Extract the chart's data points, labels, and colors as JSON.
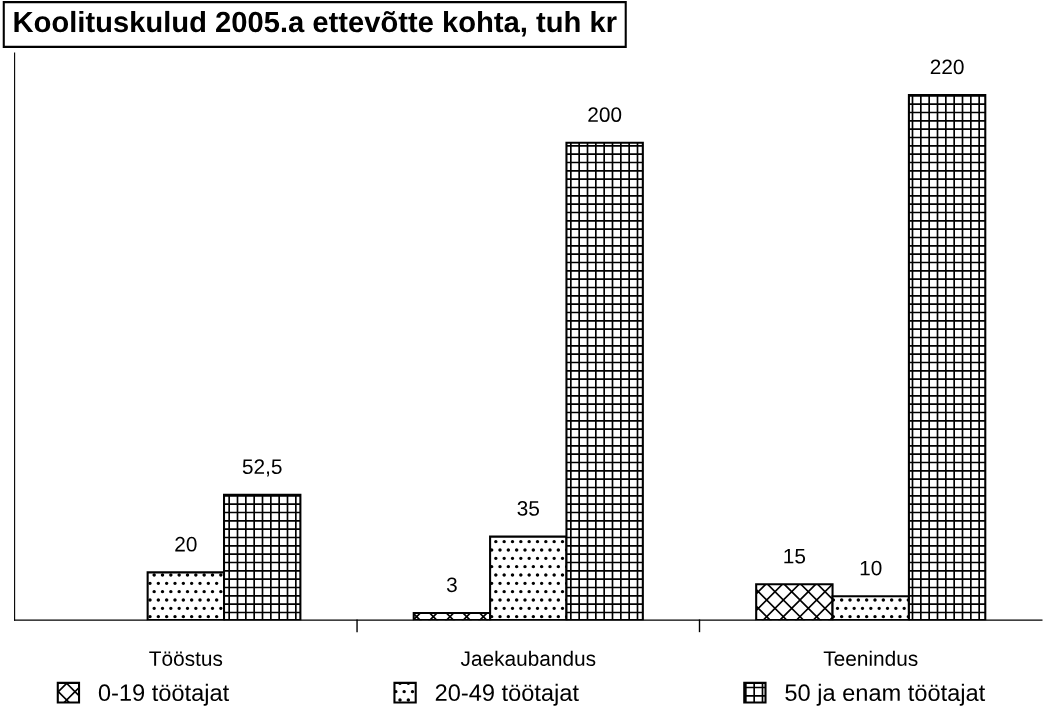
{
  "chart_data": {
    "type": "bar",
    "title": "Koolituskulud 2005.a ettevõtte kohta, tuh kr",
    "categories": [
      "Tööstus",
      "Jaekaubandus",
      "Teenindus"
    ],
    "series": [
      {
        "name": "0-19 töötajat",
        "color": "#000000",
        "values": [
          null,
          3,
          15
        ],
        "value_labels": [
          null,
          "3",
          "15"
        ]
      },
      {
        "name": "20-49 töötajat",
        "color": "#000000",
        "values": [
          20,
          35,
          10
        ],
        "value_labels": [
          "20",
          "35",
          "10"
        ]
      },
      {
        "name": "50 ja enam töötajat",
        "color": "#000000",
        "values": [
          52.5,
          200,
          220
        ],
        "value_labels": [
          "52,5",
          "200",
          "220"
        ]
      }
    ],
    "tick_labels": "x",
    "legend": "bottom"
  }
}
